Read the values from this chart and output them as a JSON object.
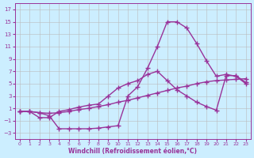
{
  "xlabel": "Windchill (Refroidissement éolien,°C)",
  "background_color": "#cceeff",
  "grid_color": "#bbbbbb",
  "line_color": "#993399",
  "xlim": [
    -0.5,
    23.5
  ],
  "ylim": [
    -4,
    18
  ],
  "xticks": [
    0,
    1,
    2,
    3,
    4,
    5,
    6,
    7,
    8,
    9,
    10,
    11,
    12,
    13,
    14,
    15,
    16,
    17,
    18,
    19,
    20,
    21,
    22,
    23
  ],
  "yticks": [
    -3,
    -1,
    1,
    3,
    5,
    7,
    9,
    11,
    13,
    15,
    17
  ],
  "curve1_x": [
    0,
    1,
    2,
    3,
    4,
    5,
    6,
    7,
    8,
    9,
    10,
    11,
    12,
    13,
    14,
    15,
    16,
    17,
    18,
    19,
    20,
    21,
    22,
    23
  ],
  "curve1_y": [
    0.5,
    0.5,
    0.3,
    0.2,
    0.3,
    0.5,
    0.8,
    1.0,
    1.3,
    1.6,
    2.0,
    2.3,
    2.7,
    3.1,
    3.5,
    3.9,
    4.3,
    4.6,
    5.0,
    5.3,
    5.5,
    5.6,
    5.7,
    5.8
  ],
  "curve2_x": [
    0,
    1,
    2,
    3,
    4,
    5,
    6,
    7,
    8,
    9,
    10,
    11,
    12,
    13,
    14,
    15,
    16,
    17,
    18,
    19,
    20,
    21,
    22,
    23
  ],
  "curve2_y": [
    0.5,
    0.5,
    0.3,
    -0.2,
    -2.3,
    -2.3,
    -2.3,
    -2.3,
    -2.2,
    -2.0,
    -1.8,
    3.0,
    4.5,
    7.5,
    11.0,
    15.0,
    15.0,
    14.0,
    11.5,
    8.7,
    6.2,
    6.5,
    6.2,
    5.0
  ],
  "curve3_x": [
    0,
    1,
    2,
    3,
    4,
    5,
    6,
    7,
    8,
    9,
    10,
    11,
    12,
    13,
    14,
    15,
    16,
    17,
    18,
    19,
    20,
    21,
    22,
    23
  ],
  "curve3_y": [
    0.5,
    0.5,
    -0.5,
    -0.5,
    0.5,
    0.8,
    1.2,
    1.5,
    1.7,
    3.0,
    4.3,
    5.0,
    5.5,
    6.5,
    7.0,
    5.5,
    4.0,
    3.0,
    2.0,
    1.3,
    0.7,
    6.3,
    6.3,
    5.2
  ],
  "marker": "+",
  "markersize": 4,
  "linewidth": 1.0
}
